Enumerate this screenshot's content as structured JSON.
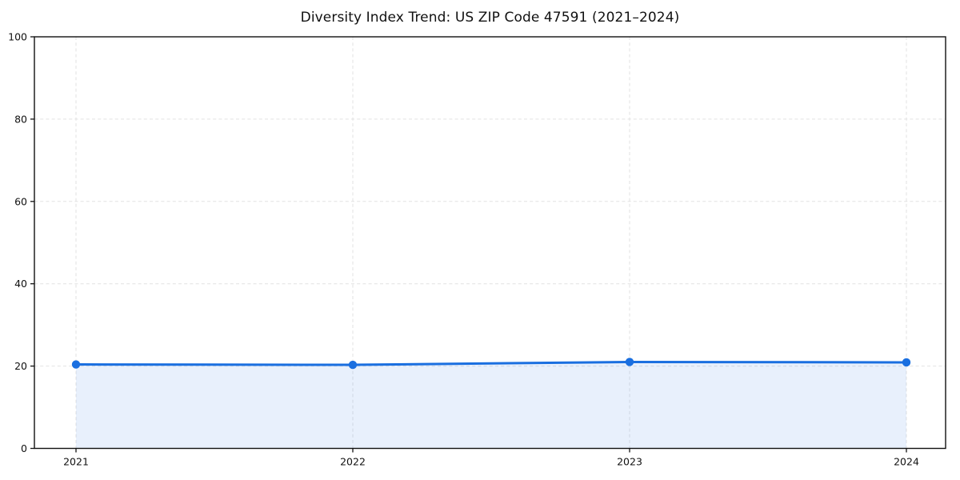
{
  "chart_data": {
    "type": "line",
    "title": "Diversity Index Trend: US ZIP Code 47591 (2021–2024)",
    "categories": [
      "2021",
      "2022",
      "2023",
      "2024"
    ],
    "series": [
      {
        "name": "Diversity Index",
        "values": [
          20.4,
          20.3,
          21.0,
          20.9
        ]
      }
    ],
    "xlabel": "",
    "ylabel": "",
    "ylim": [
      0,
      100
    ],
    "yticks": [
      0,
      20,
      40,
      60,
      80,
      100
    ],
    "grid": "dashed both axes",
    "legend": "none",
    "style": {
      "line_color": "#1a6fe0",
      "marker_color": "#1a6fe0",
      "fill_color": "#1a6fe0",
      "fill_opacity": 0.1,
      "grid_color": "#e2e2e2",
      "spine_color": "#111111",
      "background": "#ffffff"
    }
  }
}
